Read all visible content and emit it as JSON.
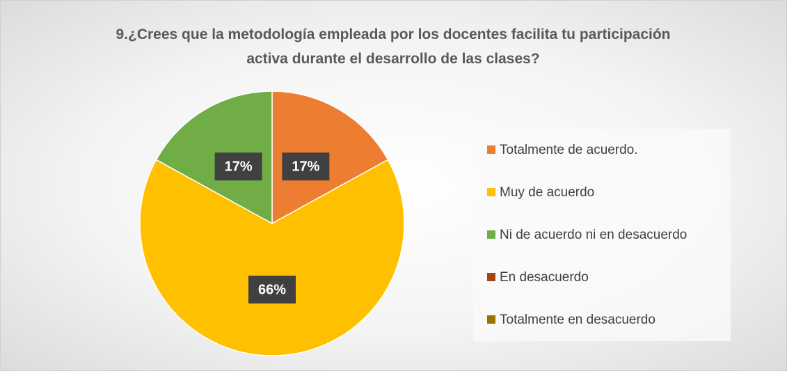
{
  "chart_data": {
    "type": "pie",
    "title": "9.¿Crees que la metodología empleada por los docentes facilita tu participación activa durante el desarrollo de las clases?",
    "categories": [
      "Totalmente de acuerdo.",
      "Muy de acuerdo",
      "Ni de acuerdo ni en desacuerdo",
      "En desacuerdo",
      "Totalmente en desacuerdo"
    ],
    "values": [
      17,
      66,
      17,
      0,
      0
    ],
    "value_labels": [
      "17%",
      "66%",
      "17%",
      null,
      null
    ],
    "colors": [
      "#ED7D31",
      "#FFC000",
      "#70AD47",
      "#9E480E",
      "#997300"
    ],
    "legend": "right"
  }
}
